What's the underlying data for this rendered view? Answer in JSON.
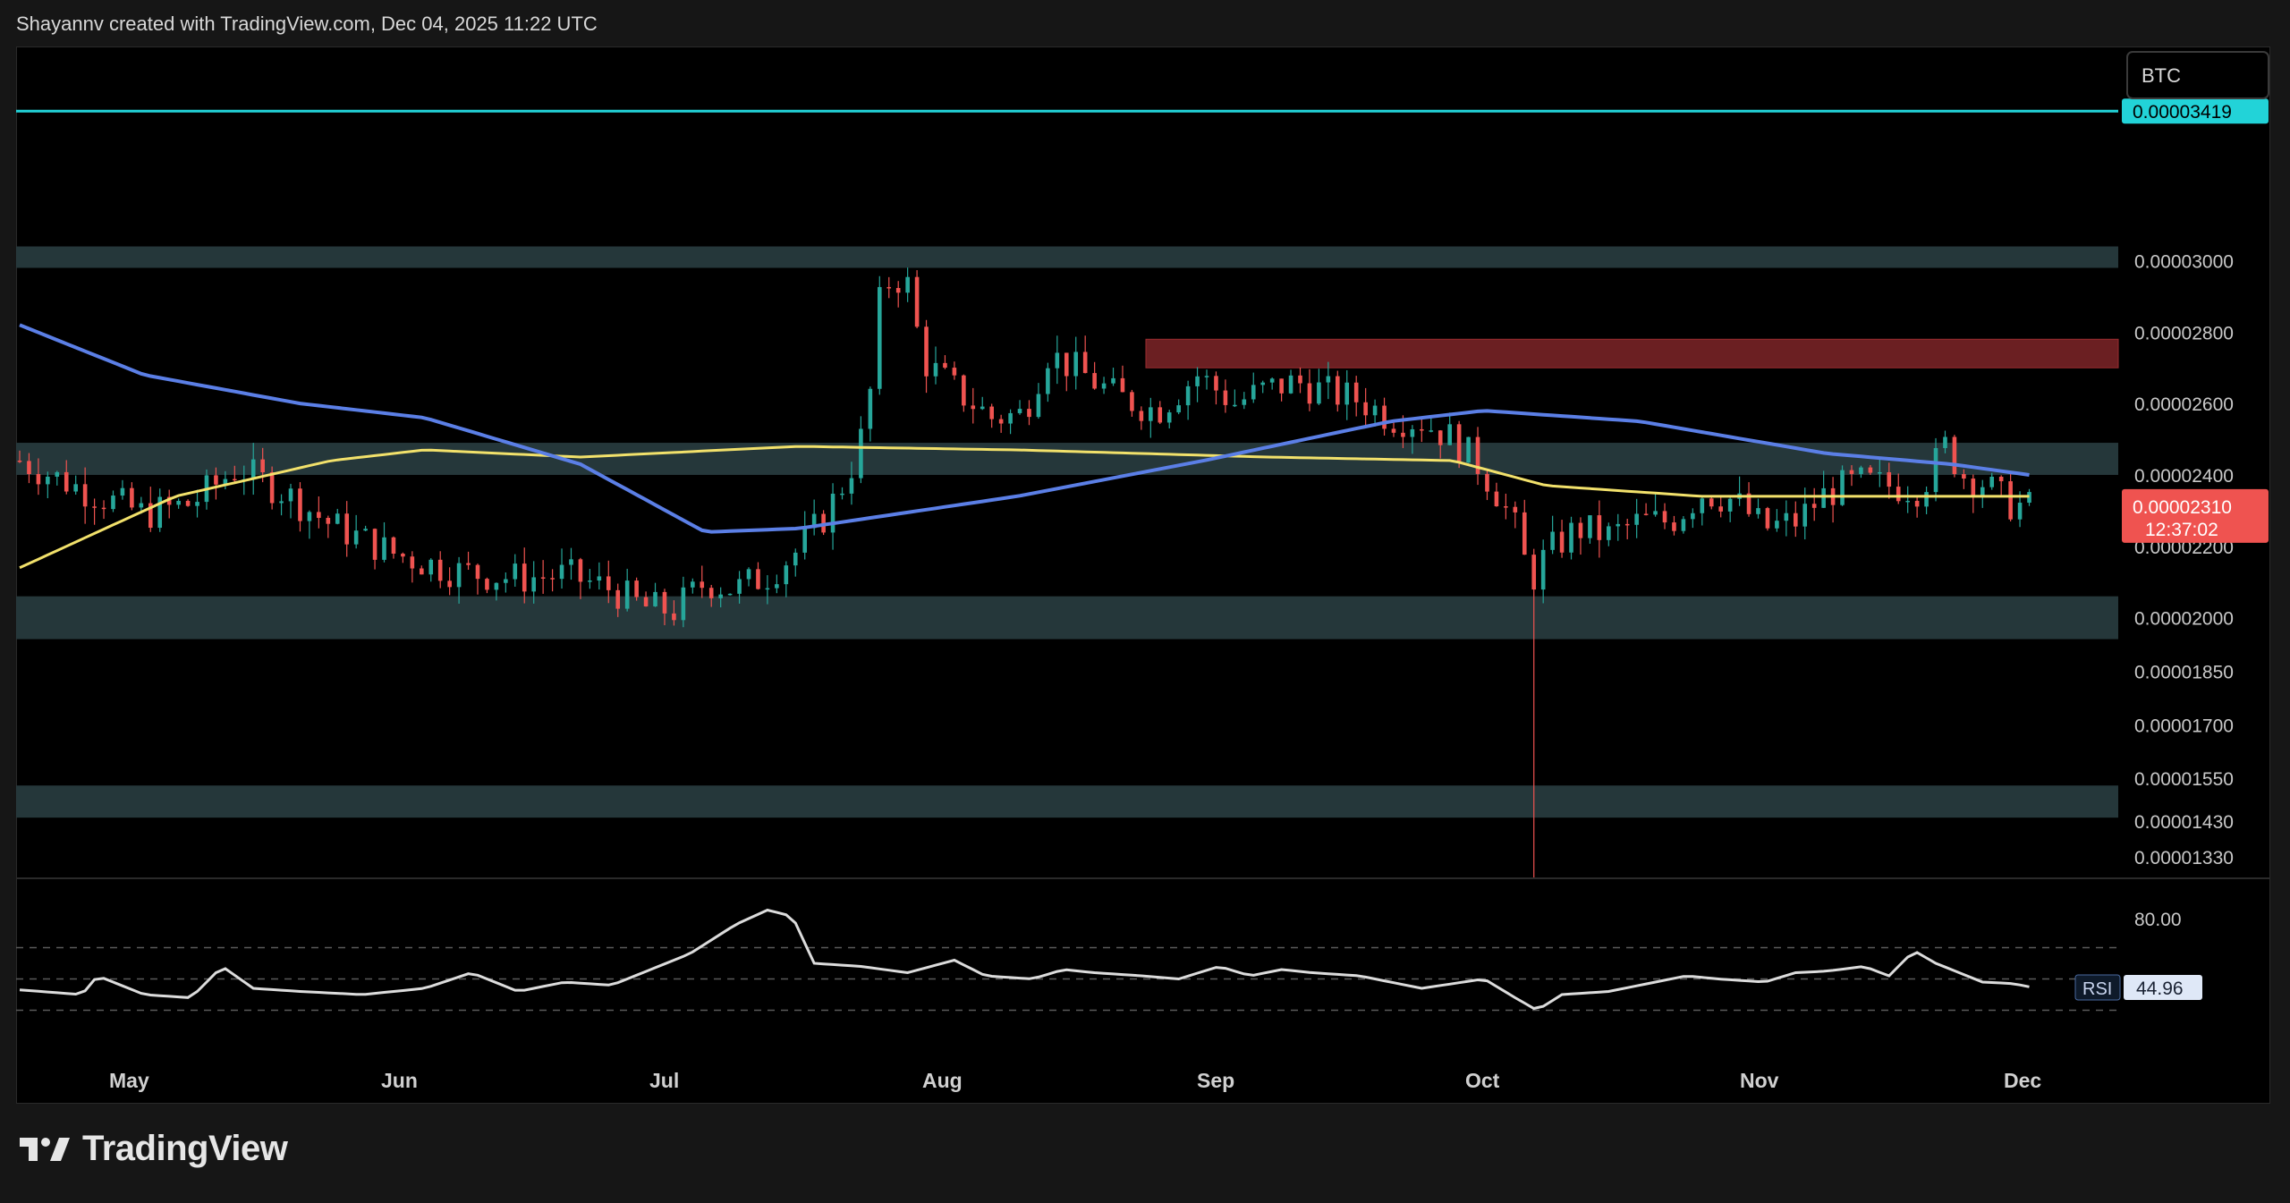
{
  "header": {
    "attribution": "Shayannv created with TradingView.com, Dec 04, 2025 11:22 UTC"
  },
  "footer": {
    "brand": "TradingView"
  },
  "colors": {
    "background": "#000000",
    "zone": "#273a3d",
    "supply_zone": "#6b1f22",
    "resistance_line": "#22d3d8",
    "ma_blue": "#5b7fe6",
    "ma_yellow": "#f2e16b",
    "up_candle": "#26a69a",
    "down_candle": "#ef5350",
    "rsi_line": "#dcdcdc"
  },
  "chart_data": {
    "type": "candlestick",
    "symbol_badge": "BTC",
    "x_labels": [
      "May",
      "Jun",
      "Jul",
      "Aug",
      "Sep",
      "Oct",
      "Nov",
      "Dec"
    ],
    "y_ticks": [
      "0.00003000",
      "0.00002800",
      "0.00002600",
      "0.00002400",
      "0.00002200",
      "0.00002000",
      "0.00001850",
      "0.00001700",
      "0.00001550",
      "0.00001430",
      "0.00001330"
    ],
    "ylim": [
      1.27e-05,
      3.6e-05
    ],
    "resistance_line": {
      "value": 3.419e-05,
      "label": "0.00003419"
    },
    "current_price": {
      "value": 2.31e-05,
      "label": "0.00002310",
      "countdown": "12:37:02"
    },
    "zones": [
      {
        "low": 2.98e-05,
        "high": 3.04e-05
      },
      {
        "low": 2.4e-05,
        "high": 2.49e-05
      },
      {
        "low": 1.94e-05,
        "high": 2.06e-05
      },
      {
        "low": 1.44e-05,
        "high": 1.53e-05
      }
    ],
    "supply_zone": {
      "low": 2.7e-05,
      "high": 2.78e-05,
      "start_month": "Sep"
    },
    "series_points": {
      "close": [
        [
          0,
          2.44e-05
        ],
        [
          20,
          2.36e-05
        ],
        [
          40,
          2.29e-05
        ],
        [
          55,
          2.32e-05
        ],
        [
          70,
          2.42e-05
        ],
        [
          85,
          2.35e-05
        ],
        [
          100,
          2.26e-05
        ],
        [
          120,
          2.18e-05
        ],
        [
          140,
          2.13e-05
        ],
        [
          160,
          2.11e-05
        ],
        [
          175,
          2.12e-05
        ],
        [
          190,
          2.08e-05
        ],
        [
          200,
          2.03e-05
        ],
        [
          210,
          2.02e-05
        ],
        [
          220,
          2.1e-05
        ],
        [
          230,
          2.08e-05
        ],
        [
          240,
          2.12e-05
        ],
        [
          250,
          2.19e-05
        ],
        [
          258,
          2.28e-05
        ],
        [
          266,
          2.4e-05
        ],
        [
          272,
          2.55e-05
        ],
        [
          276,
          2.88e-05
        ],
        [
          280,
          2.96e-05
        ],
        [
          285,
          2.93e-05
        ],
        [
          290,
          2.72e-05
        ],
        [
          300,
          2.64e-05
        ],
        [
          312,
          2.56e-05
        ],
        [
          322,
          2.57e-05
        ],
        [
          330,
          2.74e-05
        ],
        [
          340,
          2.69e-05
        ],
        [
          352,
          2.62e-05
        ],
        [
          365,
          2.58e-05
        ],
        [
          378,
          2.68e-05
        ],
        [
          390,
          2.6e-05
        ],
        [
          400,
          2.64e-05
        ],
        [
          410,
          2.66e-05
        ],
        [
          420,
          2.63e-05
        ],
        [
          430,
          2.61e-05
        ],
        [
          440,
          2.56e-05
        ],
        [
          450,
          2.55e-05
        ],
        [
          460,
          2.5e-05
        ],
        [
          468,
          2.43e-05
        ],
        [
          475,
          2.34e-05
        ],
        [
          480,
          2.25e-05
        ],
        [
          485,
          2.1e-05
        ],
        [
          490,
          2.18e-05
        ],
        [
          500,
          2.25e-05
        ],
        [
          510,
          2.23e-05
        ],
        [
          520,
          2.27e-05
        ],
        [
          530,
          2.27e-05
        ],
        [
          540,
          2.35e-05
        ],
        [
          550,
          2.33e-05
        ],
        [
          560,
          2.25e-05
        ],
        [
          570,
          2.27e-05
        ],
        [
          580,
          2.35e-05
        ],
        [
          590,
          2.38e-05
        ],
        [
          600,
          2.37e-05
        ],
        [
          610,
          2.36e-05
        ],
        [
          618,
          2.48e-05
        ],
        [
          624,
          2.4e-05
        ],
        [
          630,
          2.38e-05
        ],
        [
          638,
          2.32e-05
        ],
        [
          645,
          2.31e-05
        ]
      ],
      "ma_blue": [
        [
          0,
          2.82e-05
        ],
        [
          40,
          2.68e-05
        ],
        [
          90,
          2.6e-05
        ],
        [
          130,
          2.56e-05
        ],
        [
          180,
          2.43e-05
        ],
        [
          220,
          2.24e-05
        ],
        [
          250,
          2.25e-05
        ],
        [
          320,
          2.34e-05
        ],
        [
          380,
          2.44e-05
        ],
        [
          440,
          2.55e-05
        ],
        [
          470,
          2.58e-05
        ],
        [
          520,
          2.55e-05
        ],
        [
          580,
          2.46e-05
        ],
        [
          620,
          2.43e-05
        ],
        [
          645,
          2.4e-05
        ]
      ],
      "ma_yellow": [
        [
          0,
          2.14e-05
        ],
        [
          50,
          2.34e-05
        ],
        [
          100,
          2.44e-05
        ],
        [
          130,
          2.47e-05
        ],
        [
          180,
          2.45e-05
        ],
        [
          250,
          2.48e-05
        ],
        [
          320,
          2.47e-05
        ],
        [
          400,
          2.45e-05
        ],
        [
          460,
          2.44e-05
        ],
        [
          490,
          2.37e-05
        ],
        [
          540,
          2.34e-05
        ],
        [
          600,
          2.34e-05
        ],
        [
          645,
          2.34e-05
        ]
      ]
    },
    "rsi": {
      "label": "RSI",
      "value": "44.96",
      "upper_band": "80.00",
      "points": [
        [
          0,
          43
        ],
        [
          20,
          40
        ],
        [
          25,
          52
        ],
        [
          40,
          40
        ],
        [
          55,
          38
        ],
        [
          65,
          58
        ],
        [
          75,
          44
        ],
        [
          90,
          42
        ],
        [
          110,
          40
        ],
        [
          130,
          44
        ],
        [
          145,
          54
        ],
        [
          160,
          42
        ],
        [
          175,
          48
        ],
        [
          190,
          46
        ],
        [
          205,
          58
        ],
        [
          215,
          66
        ],
        [
          230,
          85
        ],
        [
          240,
          94
        ],
        [
          248,
          90
        ],
        [
          255,
          60
        ],
        [
          270,
          58
        ],
        [
          285,
          54
        ],
        [
          300,
          62
        ],
        [
          310,
          52
        ],
        [
          325,
          50
        ],
        [
          335,
          56
        ],
        [
          345,
          54
        ],
        [
          360,
          52
        ],
        [
          372,
          50
        ],
        [
          385,
          58
        ],
        [
          395,
          52
        ],
        [
          405,
          56
        ],
        [
          415,
          54
        ],
        [
          430,
          52
        ],
        [
          450,
          44
        ],
        [
          470,
          50
        ],
        [
          480,
          38
        ],
        [
          487,
          30
        ],
        [
          495,
          40
        ],
        [
          510,
          42
        ],
        [
          520,
          46
        ],
        [
          535,
          52
        ],
        [
          545,
          50
        ],
        [
          560,
          48
        ],
        [
          570,
          54
        ],
        [
          580,
          55
        ],
        [
          592,
          58
        ],
        [
          600,
          52
        ],
        [
          608,
          68
        ],
        [
          615,
          60
        ],
        [
          630,
          48
        ],
        [
          640,
          47
        ],
        [
          645,
          45
        ]
      ]
    }
  }
}
